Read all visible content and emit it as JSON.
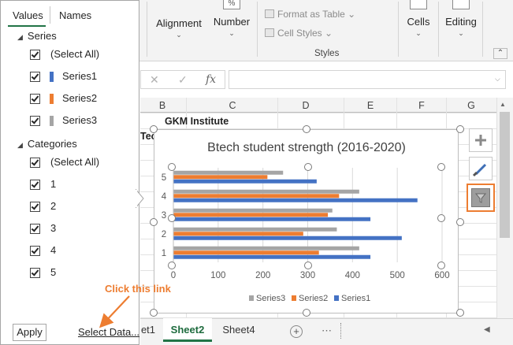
{
  "ribbon": {
    "alignment_label": "Alignment",
    "number_label": "Number",
    "number_glyph": "%",
    "format_as_table": "Format as Table",
    "cell_styles": "Cell Styles",
    "styles_group_label": "Styles",
    "cells_label": "Cells",
    "editing_label": "Editing"
  },
  "formula_bar": {
    "cancel_glyph": "✕",
    "enter_glyph": "✓",
    "function_glyph": "fx",
    "value": ""
  },
  "grid": {
    "columns": [
      "B",
      "C",
      "D",
      "E",
      "F",
      "G"
    ],
    "title_cell": "GKM Institute",
    "partial_cell": "Tec"
  },
  "chart_data": {
    "type": "bar",
    "orientation": "horizontal",
    "title": "Btech student strength (2016-2020)",
    "categories": [
      "1",
      "2",
      "3",
      "4",
      "5"
    ],
    "series": [
      {
        "name": "Series1",
        "color": "#4472c4",
        "values": [
          440,
          510,
          440,
          545,
          320
        ]
      },
      {
        "name": "Series2",
        "color": "#ed7d31",
        "values": [
          325,
          290,
          345,
          370,
          210
        ]
      },
      {
        "name": "Series3",
        "color": "#a5a5a5",
        "values": [
          415,
          365,
          355,
          415,
          245
        ]
      }
    ],
    "xlim": [
      0,
      600
    ],
    "xticks": [
      "0",
      "100",
      "200",
      "300",
      "400",
      "500",
      "600"
    ],
    "legend_position": "bottom",
    "grid": true
  },
  "filter_panel": {
    "tab_values": "Values",
    "tab_names": "Names",
    "series_section": "Series",
    "series_items": [
      {
        "label": "(Select All)",
        "checked": true
      },
      {
        "label": "Series1",
        "checked": true,
        "color": "#4472c4"
      },
      {
        "label": "Series2",
        "checked": true,
        "color": "#ed7d31"
      },
      {
        "label": "Series3",
        "checked": true,
        "color": "#a5a5a5"
      }
    ],
    "categories_section": "Categories",
    "category_items": [
      {
        "label": "(Select All)",
        "checked": true
      },
      {
        "label": "1",
        "checked": true
      },
      {
        "label": "2",
        "checked": true
      },
      {
        "label": "3",
        "checked": true
      },
      {
        "label": "4",
        "checked": true
      },
      {
        "label": "5",
        "checked": true
      }
    ],
    "apply_label": "Apply",
    "select_data_label": "Select Data..."
  },
  "annotation": {
    "text": "Click this link",
    "color": "#ed7d31"
  },
  "sheet_tabs": {
    "tabs": [
      "et1",
      "Sheet2",
      "Sheet4"
    ],
    "active": "Sheet2",
    "add_glyph": "+",
    "more_glyph": "⋯"
  }
}
